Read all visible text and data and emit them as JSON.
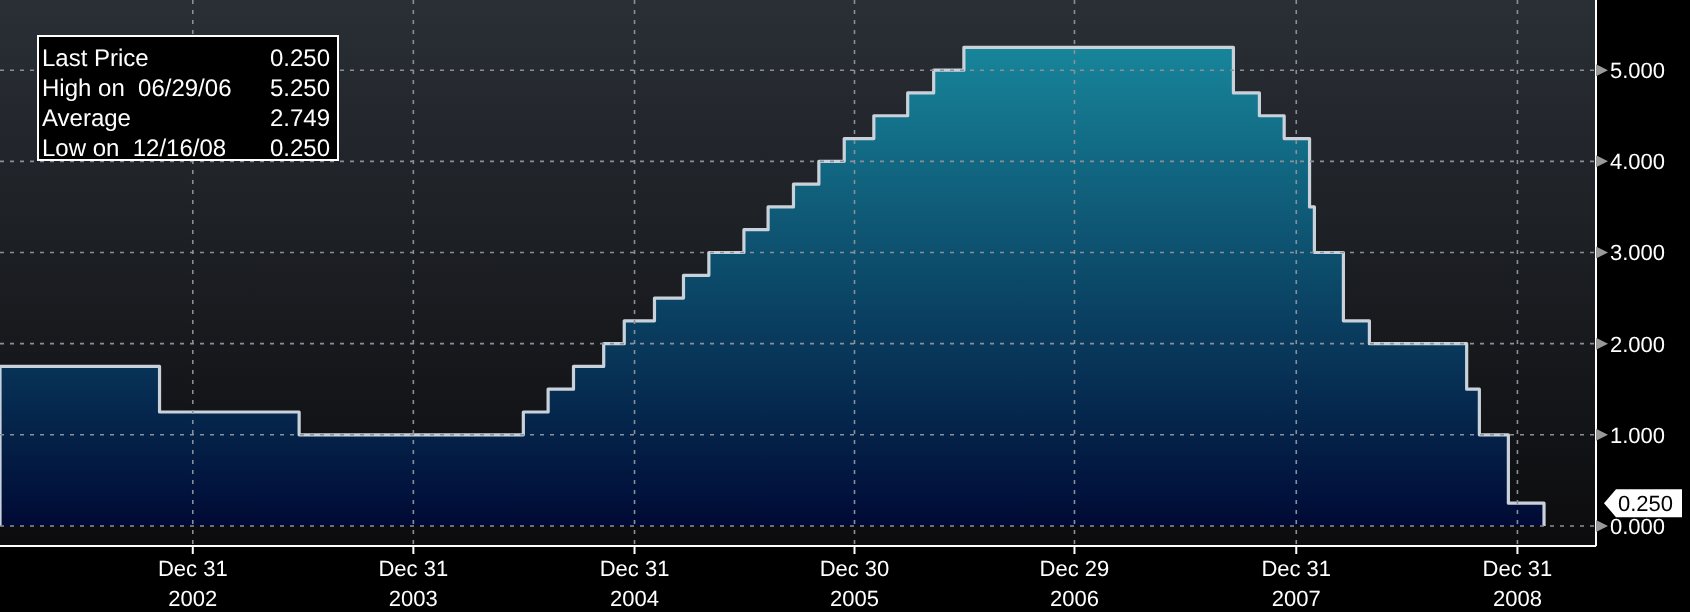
{
  "chart_data": {
    "type": "area",
    "x": [
      "2002-02-15",
      "2002-11-06",
      "2003-06-25",
      "2004-06-30",
      "2004-08-10",
      "2004-09-21",
      "2004-11-10",
      "2004-12-14",
      "2005-02-02",
      "2005-03-22",
      "2005-05-03",
      "2005-06-30",
      "2005-08-09",
      "2005-09-20",
      "2005-11-01",
      "2005-12-13",
      "2006-01-31",
      "2006-03-28",
      "2006-05-10",
      "2006-06-29",
      "2007-09-18",
      "2007-10-31",
      "2007-12-11",
      "2008-01-22",
      "2008-01-30",
      "2008-03-18",
      "2008-04-30",
      "2008-10-08",
      "2008-10-29",
      "2008-12-16",
      "2009-02-13"
    ],
    "series": [
      {
        "color": "#c9d2da",
        "values": [
          1.75,
          1.25,
          1.0,
          1.25,
          1.5,
          1.75,
          2.0,
          2.25,
          2.5,
          2.75,
          3.0,
          3.25,
          3.5,
          3.75,
          4.0,
          4.25,
          4.5,
          4.75,
          5.0,
          5.25,
          4.75,
          4.5,
          4.25,
          3.5,
          3.0,
          2.25,
          2.0,
          1.5,
          1.0,
          0.25,
          0.25
        ]
      }
    ],
    "xlim": [
      "2002-02-15",
      "2009-05-10"
    ],
    "xticks": [
      {
        "value": "2002-12-31",
        "label": "Dec 31\n2002"
      },
      {
        "value": "2003-12-31",
        "label": "Dec 31\n2003"
      },
      {
        "value": "2004-12-31",
        "label": "Dec 31\n2004"
      },
      {
        "value": "2005-12-30",
        "label": "Dec 30\n2005"
      },
      {
        "value": "2006-12-29",
        "label": "Dec 29\n2006"
      },
      {
        "value": "2007-12-31",
        "label": "Dec 31\n2007"
      },
      {
        "value": "2008-12-31",
        "label": "Dec 31\n2008"
      }
    ],
    "ylim": [
      -0.22,
      5.77
    ],
    "yticks": [
      {
        "value": 0,
        "label": "0.000"
      },
      {
        "value": 1,
        "label": "1.000"
      },
      {
        "value": 2,
        "label": "2.000"
      },
      {
        "value": 3,
        "label": "3.000"
      },
      {
        "value": 4,
        "label": "4.000"
      },
      {
        "value": 5,
        "label": "5.000"
      }
    ],
    "grid": true,
    "annotations": [
      "Last Price",
      "0.250",
      "High on  06/29/06",
      "5.250",
      "Average",
      "2.749",
      "Low on  12/16/08",
      "0.250",
      "0.250"
    ]
  }
}
